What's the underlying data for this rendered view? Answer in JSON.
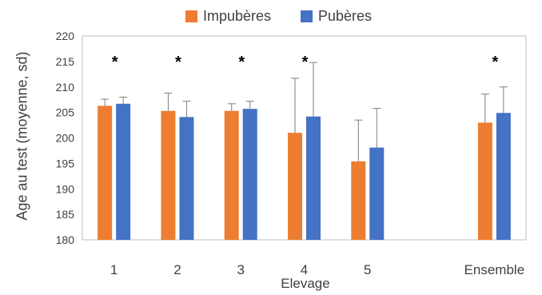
{
  "chart_data": {
    "type": "bar",
    "xlabel": "Elevage",
    "ylabel": "Age  au test (moyenne, sd)",
    "ylim": [
      180,
      220
    ],
    "yticks": [
      180,
      185,
      190,
      195,
      200,
      205,
      210,
      215,
      220
    ],
    "grid": false,
    "legend_position": "top",
    "categories": [
      "1",
      "2",
      "3",
      "4",
      "5",
      "Ensemble"
    ],
    "category_slots": [
      1,
      2,
      3,
      4,
      5,
      7
    ],
    "series": [
      {
        "name": "Impubères",
        "color": "#ED7D31",
        "values": [
          206.3,
          205.3,
          205.3,
          201.0,
          195.4,
          203.0
        ],
        "sd": [
          1.3,
          3.5,
          1.4,
          10.7,
          8.1,
          5.6
        ]
      },
      {
        "name": "Pubères",
        "color": "#4472C4",
        "values": [
          206.7,
          204.1,
          205.7,
          204.2,
          198.1,
          204.9
        ],
        "sd": [
          1.3,
          3.1,
          1.5,
          10.6,
          7.7,
          5.1
        ]
      }
    ],
    "annotations": [
      {
        "category": "1",
        "text": "*"
      },
      {
        "category": "2",
        "text": "*"
      },
      {
        "category": "3",
        "text": "*"
      },
      {
        "category": "4",
        "text": "*"
      },
      {
        "category": "Ensemble",
        "text": "*"
      }
    ]
  }
}
